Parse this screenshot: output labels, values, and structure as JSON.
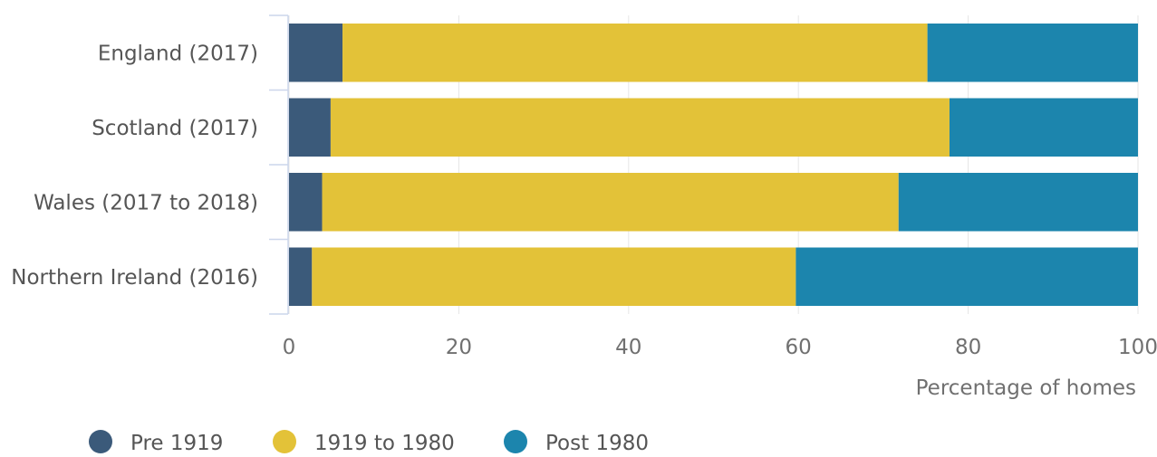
{
  "chart_data": {
    "type": "bar",
    "orientation": "horizontal",
    "stacked": true,
    "categories": [
      "England (2017)",
      "Scotland (2017)",
      "Wales (2017 to 2018)",
      "Northern Ireland (2016)"
    ],
    "series": [
      {
        "name": "Pre 1919",
        "color": "#3b5a7a",
        "values": [
          6.3,
          4.9,
          3.9,
          2.7
        ]
      },
      {
        "name": "1919 to 1980",
        "color": "#e3c238",
        "values": [
          68.9,
          72.9,
          67.9,
          57
        ]
      },
      {
        "name": "Post 1980",
        "color": "#1c85ad",
        "values": [
          24.8,
          22.2,
          28.2,
          40.3
        ]
      }
    ],
    "xlabel": "Percentage of homes",
    "ylabel": "",
    "xlim": [
      0,
      100
    ],
    "xticks": [
      0,
      20,
      40,
      60,
      80,
      100
    ],
    "grid": true,
    "legend_position": "bottom-left"
  }
}
